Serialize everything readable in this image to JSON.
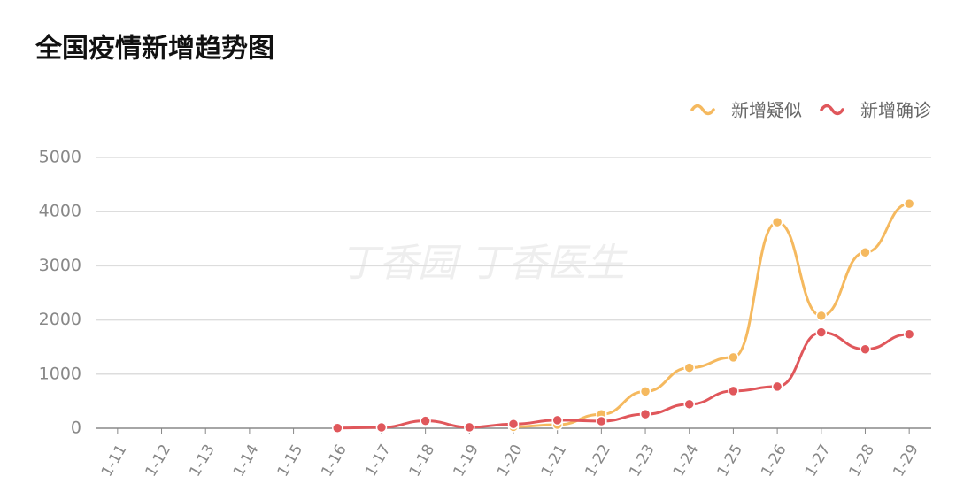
{
  "chart_data": {
    "type": "line",
    "title": "全国疫情新增趋势图",
    "watermark": "丁香园 丁香医生",
    "categories": [
      "1-11",
      "1-12",
      "1-13",
      "1-14",
      "1-15",
      "1-16",
      "1-17",
      "1-18",
      "1-19",
      "1-20",
      "1-21",
      "1-22",
      "1-23",
      "1-24",
      "1-25",
      "1-26",
      "1-27",
      "1-28",
      "1-29"
    ],
    "series": [
      {
        "name": "新增疑似",
        "color": "#f5b95f",
        "values": [
          null,
          null,
          null,
          null,
          null,
          null,
          null,
          null,
          null,
          27,
          65,
          257,
          680,
          1118,
          1309,
          3806,
          2077,
          3248,
          4148
        ]
      },
      {
        "name": "新增确诊",
        "color": "#e0575b",
        "values": [
          null,
          null,
          null,
          null,
          null,
          4,
          17,
          136,
          19,
          77,
          149,
          131,
          259,
          444,
          688,
          769,
          1771,
          1459,
          1737
        ]
      }
    ],
    "ylim": [
      0,
      5000
    ],
    "yticks": [
      0,
      1000,
      2000,
      3000,
      4000,
      5000
    ],
    "grid": true,
    "legend": "top-right"
  }
}
